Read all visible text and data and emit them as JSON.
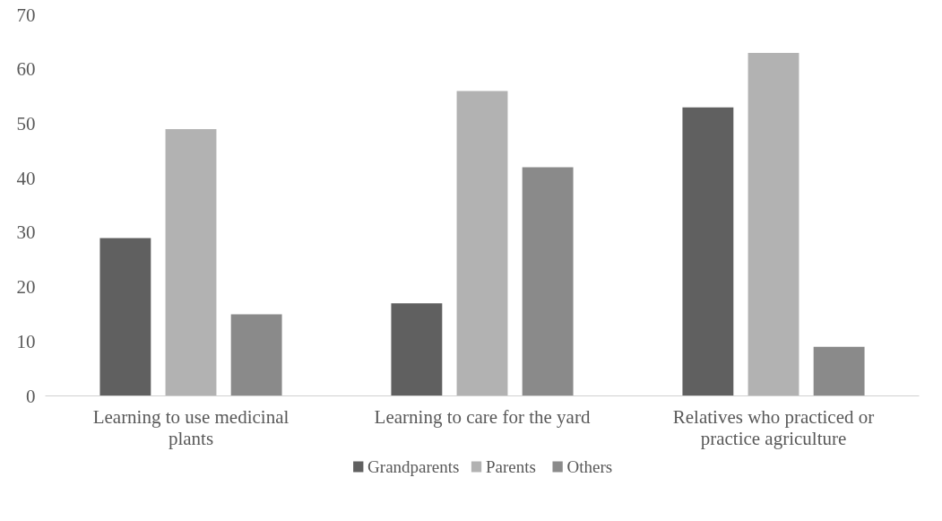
{
  "chart_data": {
    "type": "bar",
    "categories": [
      "Learning to use medicinal plants",
      "Learning to care for the yard",
      "Relatives who practiced or practice agriculture"
    ],
    "series": [
      {
        "name": "Grandparents",
        "color": "#606060",
        "values": [
          29,
          17,
          53
        ]
      },
      {
        "name": "Parents",
        "color": "#b2b2b2",
        "values": [
          49,
          56,
          63
        ]
      },
      {
        "name": "Others",
        "color": "#8a8a8a",
        "values": [
          15,
          42,
          9
        ]
      }
    ],
    "ylim": [
      0,
      70
    ],
    "yticks": [
      0,
      10,
      20,
      30,
      40,
      50,
      60,
      70
    ],
    "grid": false,
    "legend": "bottom"
  }
}
